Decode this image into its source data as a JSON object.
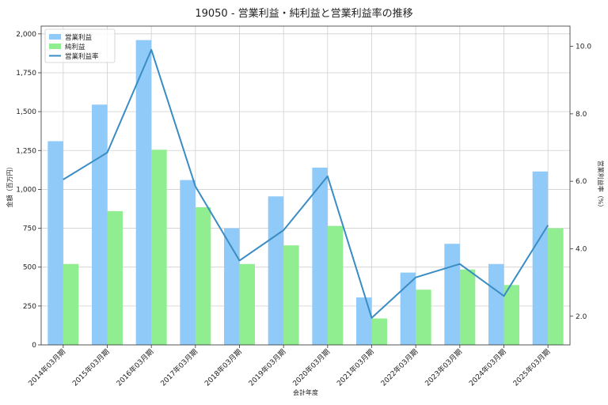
{
  "chart_data": {
    "type": "bar",
    "title": "19050 - 営業利益・純利益と営業利益率の推移",
    "xlabel": "会計年度",
    "ylabel": "金額（百万円）",
    "y2label": "営業利益率（%）",
    "categories": [
      "2014年03月期",
      "2015年03月期",
      "2016年03月期",
      "2017年03月期",
      "2018年03月期",
      "2019年03月期",
      "2020年03月期",
      "2021年03月期",
      "2022年03月期",
      "2023年03月期",
      "2024年03月期",
      "2025年03月期"
    ],
    "series": [
      {
        "name": "営業利益",
        "kind": "bar",
        "axis": "left",
        "color": "#90caf9",
        "values": [
          1310,
          1545,
          1960,
          1060,
          750,
          955,
          1140,
          305,
          465,
          650,
          520,
          1115
        ]
      },
      {
        "name": "純利益",
        "kind": "bar",
        "axis": "left",
        "color": "#90ee90",
        "values": [
          520,
          860,
          1255,
          885,
          520,
          640,
          765,
          170,
          355,
          485,
          385,
          750
        ]
      },
      {
        "name": "営業利益率",
        "kind": "line",
        "axis": "right",
        "color": "#3a8cc4",
        "values": [
          6.05,
          6.85,
          9.9,
          5.85,
          3.65,
          4.55,
          6.15,
          1.95,
          3.15,
          3.55,
          2.6,
          4.7
        ]
      }
    ],
    "ylim": [
      0,
      2050
    ],
    "y2lim": [
      1.15,
      10.6
    ],
    "yticks": [
      0,
      250,
      500,
      750,
      1000,
      1250,
      1500,
      1750,
      2000
    ],
    "yticklabels": [
      "0",
      "250",
      "500",
      "750",
      "1,000",
      "1,250",
      "1,500",
      "1,750",
      "2,000"
    ],
    "y2ticks": [
      2.0,
      4.0,
      6.0,
      8.0,
      10.0
    ],
    "y2ticklabels": [
      "2.0",
      "4.0",
      "6.0",
      "8.0",
      "10.0"
    ],
    "grid": true,
    "legend_position": "top-left"
  }
}
